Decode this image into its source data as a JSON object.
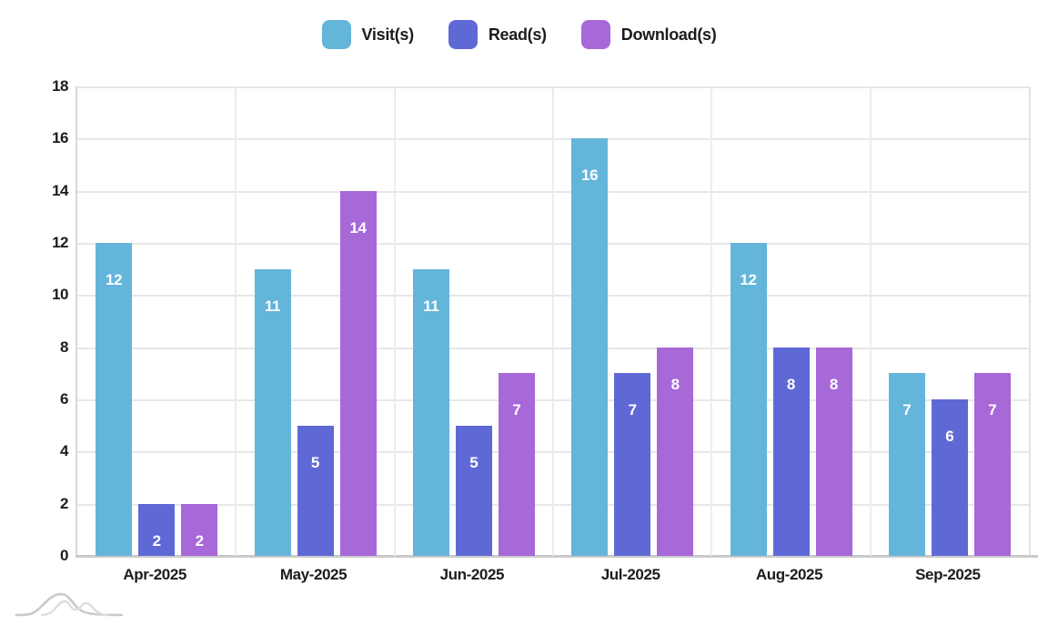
{
  "chart_data": {
    "type": "bar",
    "title": "",
    "xlabel": "",
    "ylabel": "",
    "categories": [
      "Apr-2025",
      "May-2025",
      "Jun-2025",
      "Jul-2025",
      "Aug-2025",
      "Sep-2025"
    ],
    "series": [
      {
        "name": "Visit(s)",
        "color": "#64b5da",
        "values": [
          12,
          11,
          11,
          16,
          12,
          7
        ]
      },
      {
        "name": "Read(s)",
        "color": "#5f69d5",
        "values": [
          2,
          5,
          5,
          7,
          8,
          6
        ]
      },
      {
        "name": "Download(s)",
        "color": "#a768d8",
        "values": [
          2,
          14,
          7,
          8,
          8,
          7
        ]
      }
    ],
    "ylim": [
      0,
      18
    ],
    "ytick_step": 2,
    "ytick_labels": [
      "0",
      "2",
      "4",
      "6",
      "8",
      "10",
      "12",
      "14",
      "16",
      "18"
    ],
    "grid": true,
    "legend_position": "top",
    "bar_value_labels_visible": true,
    "colors": {
      "grid": "#e7e7e7",
      "axis_baseline": "#c9c9c9",
      "text": "#1c1c1c",
      "bar_value_text": "#ffffff",
      "watermark": "#cfcfcf"
    }
  },
  "watermark": {
    "icon": "waves-logo"
  }
}
